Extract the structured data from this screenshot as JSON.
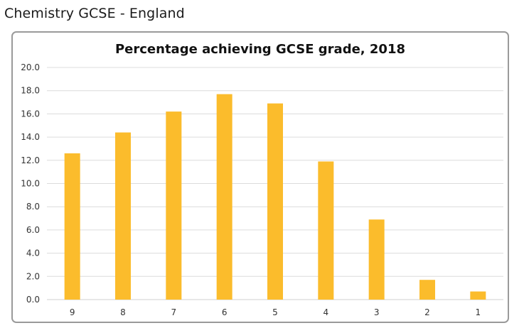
{
  "heading": "Chemistry GCSE - England",
  "chart_data": {
    "type": "bar",
    "title": "Percentage achieving GCSE grade, 2018",
    "xlabel": "",
    "ylabel": "",
    "categories": [
      "9",
      "8",
      "7",
      "6",
      "5",
      "4",
      "3",
      "2",
      "1"
    ],
    "values": [
      12.6,
      14.4,
      16.2,
      17.7,
      16.9,
      11.9,
      6.9,
      1.7,
      0.7
    ],
    "ylim": [
      0,
      20
    ],
    "yticks": [
      "0.0",
      "2.0",
      "4.0",
      "6.0",
      "8.0",
      "10.0",
      "12.0",
      "14.0",
      "16.0",
      "18.0",
      "20.0"
    ],
    "grid": true,
    "legend": "none",
    "bar_color": "#fbbc2c",
    "grid_color": "#dcdcdc"
  }
}
